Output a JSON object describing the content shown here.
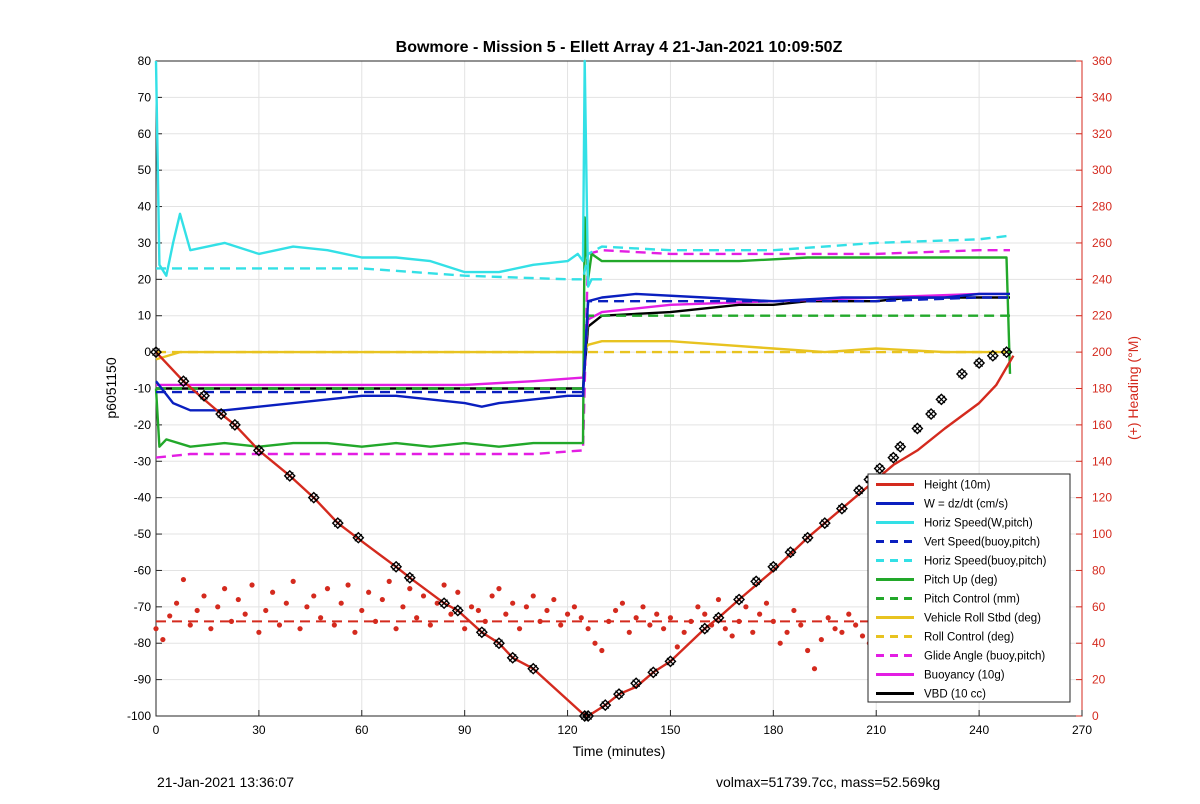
{
  "chart_data": {
    "type": "line",
    "title": "Bowmore - Mission 5 - Ellett Array 4 21-Jan-2021 10:09:50Z",
    "xlabel": "Time (minutes)",
    "ylabel": "p6051150",
    "y2label": "(+) Heading (°M)",
    "xlim": [
      0,
      270
    ],
    "ylim": [
      -100,
      80
    ],
    "y2lim": [
      0,
      360
    ],
    "xticks": [
      0,
      30,
      60,
      90,
      120,
      150,
      180,
      210,
      240,
      270
    ],
    "yticks": [
      -100,
      -90,
      -80,
      -70,
      -60,
      -50,
      -40,
      -30,
      -20,
      -10,
      0,
      10,
      20,
      30,
      40,
      50,
      60,
      70,
      80
    ],
    "y2ticks": [
      0,
      20,
      40,
      60,
      80,
      100,
      120,
      140,
      160,
      180,
      200,
      220,
      240,
      260,
      280,
      300,
      320,
      340,
      360
    ],
    "grid": true,
    "legend_position": "bottom-right",
    "series": [
      {
        "name": "Height (10m)",
        "color": "#d42a1e",
        "style": "solid",
        "axis": "left",
        "x": [
          0,
          8,
          14,
          19,
          23,
          30,
          39,
          46,
          53,
          60,
          70,
          74,
          84,
          88,
          95,
          100,
          104,
          110,
          124,
          126,
          131,
          135,
          140,
          145,
          150,
          160,
          164,
          170,
          180,
          190,
          200,
          210,
          215,
          222,
          230,
          240,
          245,
          250
        ],
        "y": [
          0,
          -8,
          -13,
          -17,
          -20,
          -27,
          -34,
          -40,
          -47,
          -52,
          -59,
          -62,
          -69,
          -71,
          -77,
          -80,
          -84,
          -87,
          -99,
          -100,
          -97,
          -94,
          -92,
          -88,
          -85,
          -76,
          -73,
          -68,
          -60,
          -51,
          -43,
          -35,
          -31,
          -27,
          -21,
          -14,
          -9,
          -1
        ]
      },
      {
        "name": "W = dz/dt (cm/s)",
        "color": "#0a1fbf",
        "style": "solid",
        "axis": "left",
        "x": [
          0,
          5,
          10,
          20,
          30,
          40,
          50,
          60,
          70,
          80,
          90,
          95,
          100,
          110,
          120,
          123,
          124.5,
          126,
          130,
          140,
          160,
          180,
          200,
          220,
          230,
          240,
          249
        ],
        "y": [
          -8,
          -14,
          -16,
          -16,
          -15,
          -14,
          -13,
          -12,
          -12,
          -13,
          -14,
          -15,
          -14,
          -13,
          -12,
          -12,
          -12,
          14,
          15,
          16,
          15,
          14,
          15,
          15,
          15,
          16,
          16
        ]
      },
      {
        "name": "Horiz Speed(W,pitch)",
        "color": "#33e0e6",
        "style": "solid",
        "axis": "left",
        "x": [
          0,
          1,
          3,
          5,
          7,
          10,
          20,
          30,
          40,
          50,
          60,
          70,
          80,
          90,
          100,
          110,
          120,
          123,
          124.5,
          125,
          126,
          127,
          130
        ],
        "y": [
          80,
          24,
          21,
          30,
          38,
          28,
          30,
          27,
          29,
          28,
          26,
          26,
          25,
          22,
          22,
          24,
          25,
          27,
          25,
          80,
          18,
          20,
          20
        ]
      },
      {
        "name": "Vert Speed(buoy,pitch)",
        "color": "#0a1fbf",
        "style": "dashed",
        "axis": "left",
        "x": [
          0,
          10,
          30,
          60,
          90,
          120,
          124.5,
          126,
          130,
          150,
          180,
          210,
          240,
          249
        ],
        "y": [
          -11,
          -11,
          -11,
          -11,
          -11,
          -11,
          -11,
          14,
          14,
          14,
          14,
          14,
          15,
          15
        ]
      },
      {
        "name": "Horiz Speed(buoy,pitch)",
        "color": "#33e0e6",
        "style": "dashed",
        "axis": "left",
        "x": [
          0,
          10,
          30,
          60,
          90,
          120,
          124.5,
          126,
          130,
          150,
          180,
          210,
          240,
          249
        ],
        "y": [
          23,
          23,
          23,
          23,
          21,
          20,
          20,
          27,
          29,
          28,
          28,
          30,
          31,
          32
        ]
      },
      {
        "name": "Pitch Up (deg)",
        "color": "#22a82a",
        "style": "solid",
        "axis": "left",
        "x": [
          0,
          1,
          3,
          10,
          20,
          30,
          40,
          50,
          60,
          70,
          80,
          90,
          100,
          110,
          120,
          124.5,
          125,
          126,
          127,
          130,
          150,
          170,
          190,
          210,
          230,
          248,
          249
        ],
        "y": [
          -10,
          -26,
          -24,
          -26,
          -25,
          -26,
          -25,
          -25,
          -26,
          -25,
          -26,
          -25,
          -26,
          -25,
          -25,
          -25,
          37,
          20,
          27,
          25,
          25,
          25,
          26,
          26,
          26,
          26,
          -6
        ]
      },
      {
        "name": "Pitch Control (mm)",
        "color": "#22a82a",
        "style": "dashed",
        "axis": "left",
        "x": [
          0,
          30,
          60,
          90,
          124.5,
          126,
          130,
          150,
          180,
          210,
          240,
          249
        ],
        "y": [
          -10,
          -10,
          -10,
          -10,
          -10,
          10,
          10,
          10,
          10,
          10,
          10,
          10
        ]
      },
      {
        "name": "Vehicle Roll Stbd (deg)",
        "color": "#e8c320",
        "style": "solid",
        "axis": "left",
        "x": [
          0,
          7,
          15,
          30,
          45,
          60,
          75,
          90,
          105,
          120,
          124.5,
          126,
          130,
          150,
          165,
          180,
          195,
          210,
          230,
          245,
          249
        ],
        "y": [
          -2,
          0,
          0,
          0,
          0,
          0,
          0,
          0,
          0,
          0,
          0,
          2,
          3,
          3,
          2,
          1,
          0,
          1,
          0,
          0,
          0
        ]
      },
      {
        "name": "Roll Control (deg)",
        "color": "#e8c320",
        "style": "dashed",
        "axis": "left",
        "x": [
          0,
          30,
          60,
          90,
          124.5,
          126,
          150,
          180,
          210,
          240,
          249
        ],
        "y": [
          0,
          0,
          0,
          0,
          0,
          0,
          0,
          0,
          0,
          0,
          0
        ]
      },
      {
        "name": "Glide Angle (buoy,pitch)",
        "color": "#e31ee3",
        "style": "dashed",
        "axis": "left",
        "x": [
          0,
          10,
          30,
          60,
          90,
          110,
          124.5,
          126,
          130,
          150,
          180,
          210,
          240,
          249
        ],
        "y": [
          -29,
          -28,
          -28,
          -28,
          -28,
          -28,
          -27,
          27,
          28,
          27,
          27,
          27,
          28,
          28
        ]
      },
      {
        "name": "Buoyancy (10g)",
        "color": "#e31ee3",
        "style": "solid",
        "axis": "left",
        "x": [
          0,
          30,
          60,
          90,
          110,
          124.5,
          126,
          130,
          150,
          180,
          210,
          240,
          249
        ],
        "y": [
          -9,
          -9,
          -9,
          -9,
          -8,
          -7,
          9,
          11,
          13,
          14,
          15,
          16,
          16
        ]
      },
      {
        "name": "VBD (10 cc)",
        "color": "#000000",
        "style": "solid",
        "axis": "left",
        "x": [
          0,
          30,
          60,
          90,
          110,
          124.5,
          126,
          130,
          150,
          160,
          170,
          180,
          190,
          200,
          210,
          220,
          230,
          240,
          249
        ],
        "y": [
          -10,
          -10,
          -10,
          -10,
          -10,
          -10,
          7,
          10,
          11,
          12,
          13,
          13,
          14,
          14,
          14,
          15,
          15,
          15,
          15
        ]
      }
    ],
    "heading_series": {
      "color": "#d42a1e",
      "axis": "right",
      "style": "markers",
      "mean_line": 52,
      "x": [
        0,
        2,
        4,
        6,
        8,
        10,
        12,
        14,
        16,
        18,
        20,
        22,
        24,
        26,
        28,
        30,
        32,
        34,
        36,
        38,
        40,
        42,
        44,
        46,
        48,
        50,
        52,
        54,
        56,
        58,
        60,
        62,
        64,
        66,
        68,
        70,
        72,
        74,
        76,
        78,
        80,
        82,
        84,
        86,
        88,
        90,
        92,
        94,
        96,
        98,
        100,
        102,
        104,
        106,
        108,
        110,
        112,
        114,
        116,
        118,
        120,
        122,
        124,
        126,
        128,
        130,
        132,
        134,
        136,
        138,
        140,
        142,
        144,
        146,
        148,
        150,
        152,
        154,
        156,
        158,
        160,
        162,
        164,
        166,
        168,
        170,
        172,
        174,
        176,
        178,
        180,
        182,
        184,
        186,
        188,
        190,
        192,
        194,
        196,
        198,
        200,
        202,
        204,
        206,
        208,
        210,
        212,
        214,
        216,
        218,
        220,
        222,
        224,
        226,
        228,
        230,
        232,
        234,
        236,
        238,
        240,
        242,
        244,
        246,
        248
      ],
      "y": [
        48,
        42,
        55,
        62,
        75,
        50,
        58,
        66,
        48,
        60,
        70,
        52,
        64,
        56,
        72,
        46,
        58,
        68,
        50,
        62,
        74,
        48,
        60,
        66,
        54,
        70,
        50,
        62,
        72,
        46,
        58,
        68,
        52,
        64,
        74,
        48,
        60,
        70,
        54,
        66,
        50,
        62,
        72,
        56,
        68,
        48,
        60,
        58,
        52,
        66,
        70,
        56,
        62,
        48,
        60,
        66,
        52,
        58,
        64,
        50,
        56,
        60,
        54,
        48,
        40,
        36,
        52,
        58,
        62,
        46,
        54,
        60,
        50,
        56,
        48,
        54,
        38,
        46,
        52,
        60,
        56,
        50,
        64,
        48,
        44,
        52,
        60,
        46,
        56,
        62,
        52,
        40,
        46,
        58,
        50,
        36,
        26,
        42,
        54,
        48,
        46,
        56,
        50,
        44,
        40,
        30,
        38,
        46,
        54,
        40,
        36,
        44,
        52,
        32,
        40,
        48,
        38,
        46,
        54,
        42,
        50,
        44,
        60,
        56,
        62
      ]
    },
    "vbd_markers": {
      "x": [
        0,
        8,
        14,
        19,
        23,
        30,
        39,
        46,
        53,
        59,
        70,
        74,
        84,
        88,
        95,
        100,
        104,
        110,
        125,
        126,
        131,
        135,
        140,
        145,
        150,
        160,
        164,
        170,
        175,
        180,
        185,
        190,
        195,
        200,
        205,
        208,
        211,
        215,
        217,
        222,
        226,
        229,
        235,
        240,
        244,
        248
      ],
      "y": [
        0,
        -8,
        -12,
        -17,
        -20,
        -27,
        -34,
        -40,
        -47,
        -51,
        -59,
        -62,
        -69,
        -71,
        -77,
        -80,
        -84,
        -87,
        -100,
        -100,
        -97,
        -94,
        -91,
        -88,
        -85,
        -76,
        -73,
        -68,
        -63,
        -59,
        -55,
        -51,
        -47,
        -43,
        -38,
        -35,
        -32,
        -29,
        -26,
        -21,
        -17,
        -13,
        -6,
        -3,
        -1,
        0
      ]
    }
  },
  "footer": {
    "left": "21-Jan-2021 13:36:07",
    "right": "volmax=51739.7cc, mass=52.569kg"
  }
}
